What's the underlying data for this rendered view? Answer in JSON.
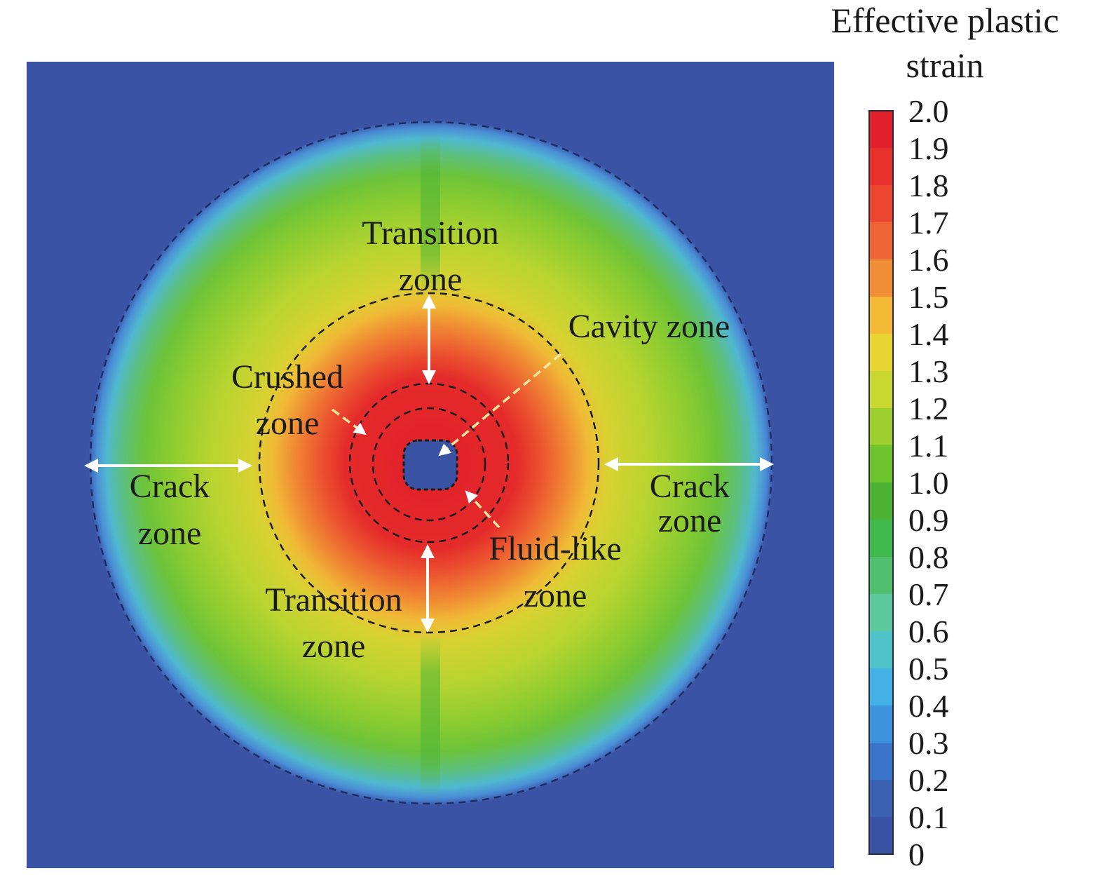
{
  "colorbar": {
    "title_line1": "Effective plastic",
    "title_line2": "strain",
    "ticks": [
      "2.0",
      "1.9",
      "1.8",
      "1.7",
      "1.6",
      "1.5",
      "1.4",
      "1.3",
      "1.2",
      "1.1",
      "1.0",
      "0.9",
      "0.8",
      "0.7",
      "0.6",
      "0.5",
      "0.4",
      "0.3",
      "0.2",
      "0.1",
      "0"
    ],
    "band_colors": [
      "#e0202a",
      "#e8302c",
      "#ec4630",
      "#ef6434",
      "#f28e36",
      "#f5ba35",
      "#e8d532",
      "#c8d830",
      "#9ccf2e",
      "#6ec42c",
      "#4db335",
      "#3fb94b",
      "#50c06e",
      "#5cc89e",
      "#50c4c8",
      "#44b2e6",
      "#3c94dc",
      "#3a74c8",
      "#3a60b2",
      "#3a53a5"
    ]
  },
  "zones": {
    "transition_top": [
      "Transition",
      "zone"
    ],
    "cavity": "Cavity zone",
    "crushed": [
      "Crushed",
      "zone"
    ],
    "crack_left": [
      "Crack",
      "zone"
    ],
    "crack_right": [
      "Crack",
      "zone"
    ],
    "fluid_like": [
      "Fluid-like",
      "zone"
    ],
    "transition_bottom": [
      "Transition",
      "zone"
    ]
  },
  "colors": {
    "background_field": "#3a53a5",
    "annotation": "#1b1b1b",
    "arrow": "#ffffff",
    "dashed_pointer": "#fde7a0"
  }
}
